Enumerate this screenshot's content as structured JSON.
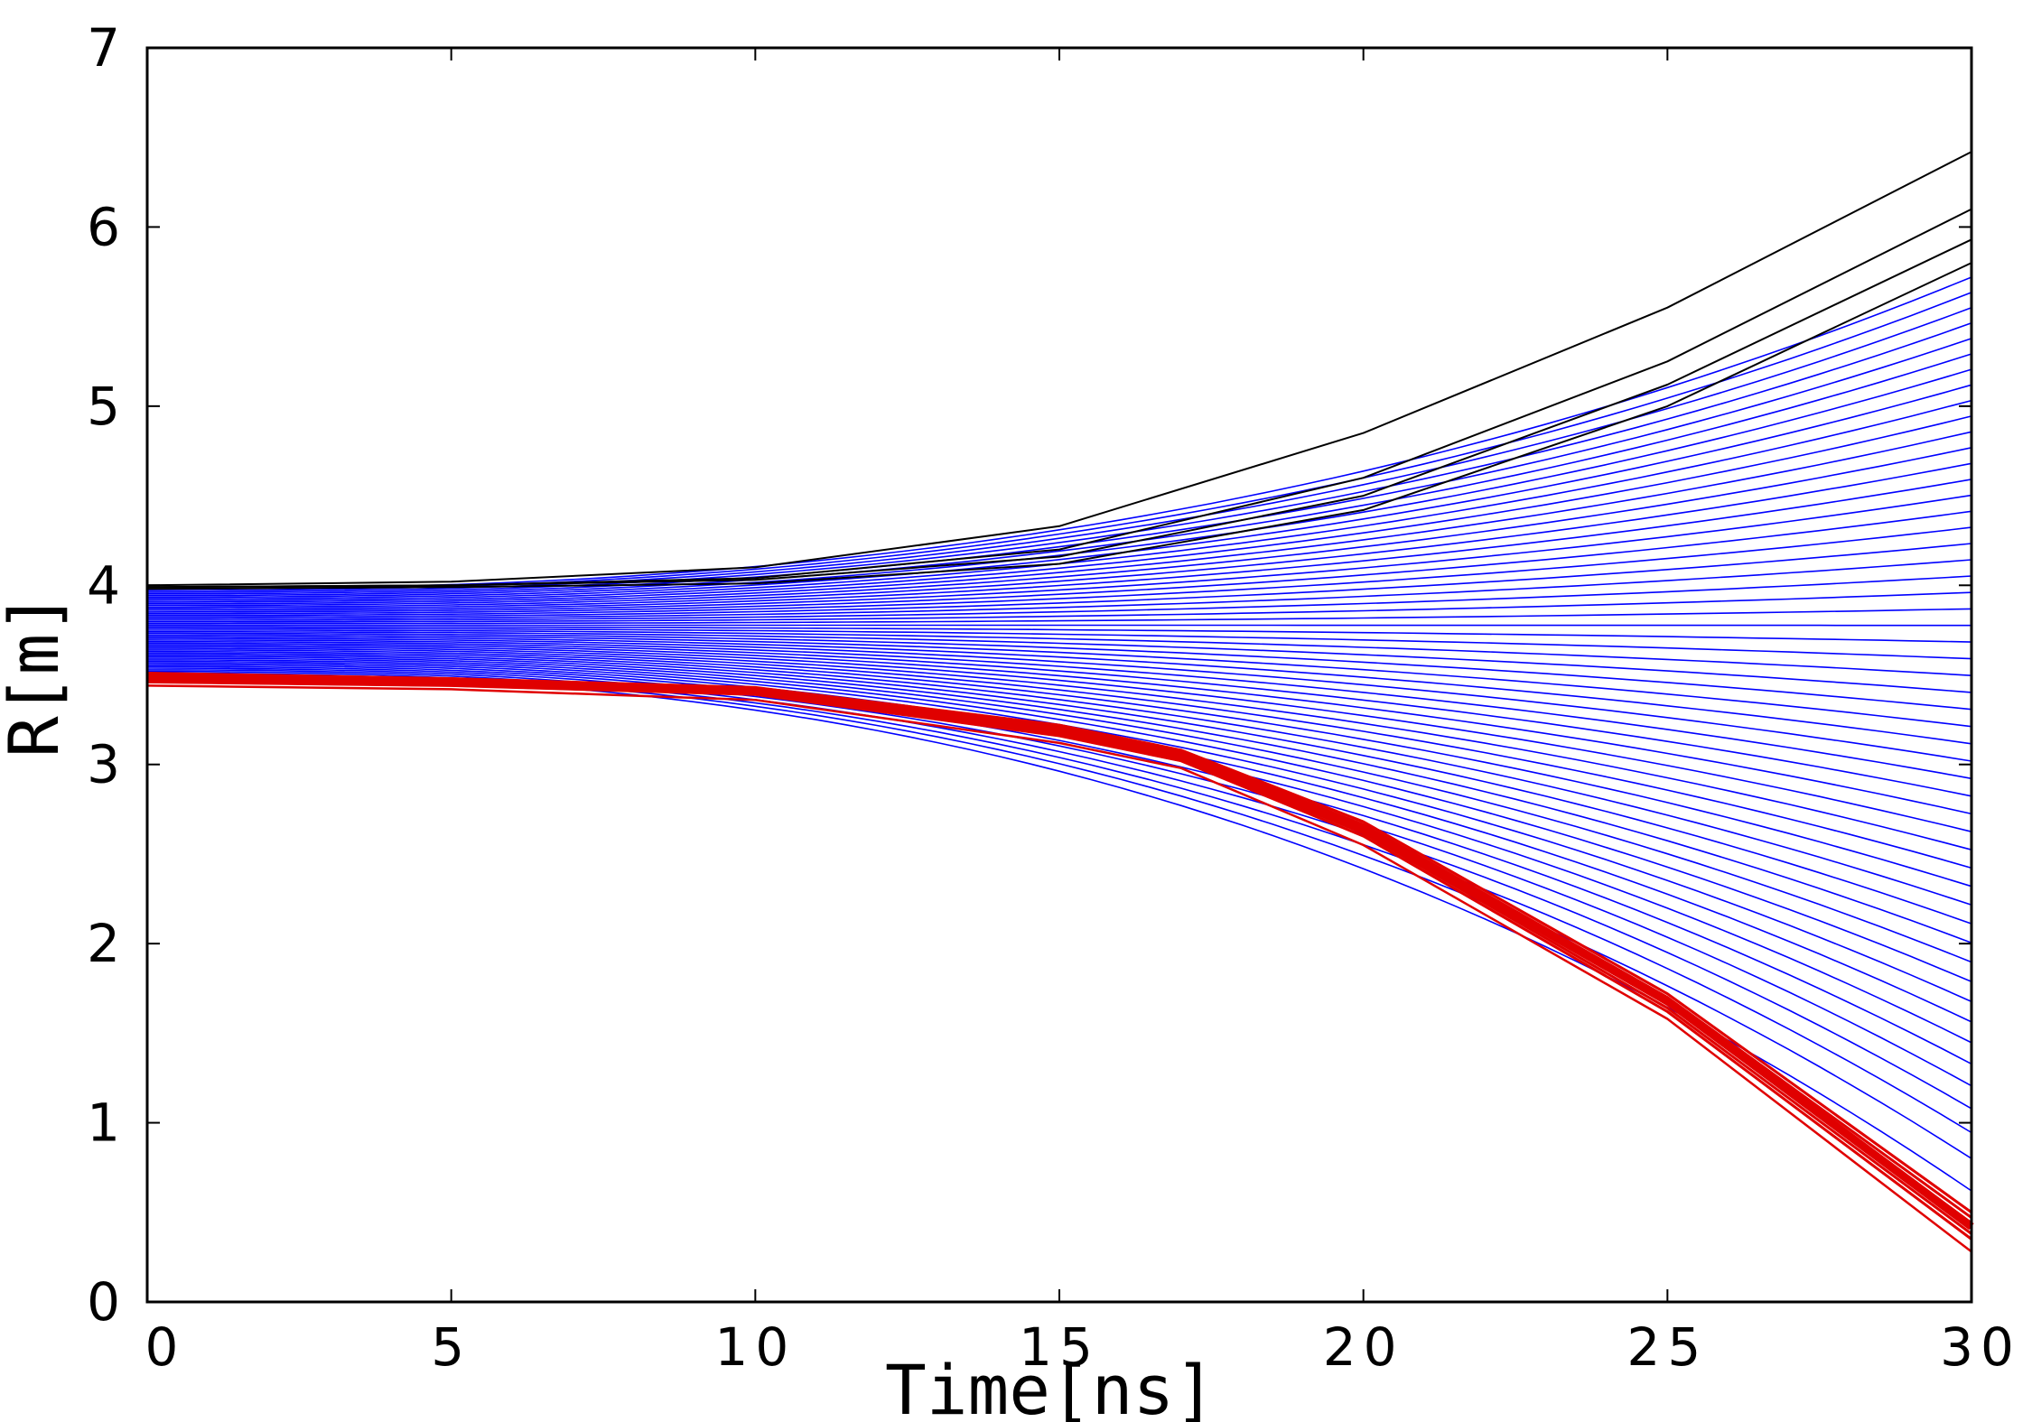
{
  "chart_data": {
    "type": "line",
    "title": "",
    "xlabel": "Time[ns]",
    "ylabel": "R[m]",
    "xlim": [
      0,
      30
    ],
    "ylim": [
      0,
      7
    ],
    "xticks": [
      0,
      5,
      10,
      15,
      20,
      25,
      30
    ],
    "yticks": [
      0,
      1,
      2,
      3,
      4,
      5,
      6,
      7
    ],
    "x_tick_labels": [
      "0",
      "5",
      "10",
      "15",
      "20",
      "25",
      "30"
    ],
    "y_tick_labels": [
      "0",
      "1",
      "2",
      "3",
      "4",
      "5",
      "6",
      "7"
    ],
    "grid": false,
    "legend": "none",
    "colors": {
      "black": "#000000",
      "blue": "#0000ff",
      "red": "#e00000"
    },
    "series_groups": [
      {
        "color": "black",
        "description_hidden": true,
        "time": [
          0,
          5,
          10,
          15,
          20,
          25,
          30
        ],
        "lines": [
          [
            4.0,
            4.02,
            4.1,
            4.33,
            4.85,
            5.55,
            6.42
          ],
          [
            3.99,
            4.0,
            4.04,
            4.2,
            4.6,
            5.25,
            6.1
          ],
          [
            3.99,
            4.0,
            4.03,
            4.16,
            4.5,
            5.12,
            5.93
          ],
          [
            3.98,
            3.99,
            4.01,
            4.12,
            4.42,
            5.0,
            5.8
          ]
        ]
      },
      {
        "color": "blue",
        "start_range": [
          3.51,
          3.98
        ],
        "end_range": [
          0.62,
          5.72
        ],
        "count": 52
      },
      {
        "color": "red",
        "time": [
          0,
          5,
          10,
          15,
          17,
          20,
          25,
          30
        ],
        "lines": [
          [
            3.51,
            3.48,
            3.43,
            3.22,
            3.08,
            2.68,
            1.72,
            0.5
          ],
          [
            3.48,
            3.46,
            3.41,
            3.2,
            3.06,
            2.64,
            1.68,
            0.42
          ],
          [
            3.46,
            3.44,
            3.39,
            3.16,
            3.02,
            2.6,
            1.62,
            0.35
          ],
          [
            3.44,
            3.42,
            3.36,
            3.12,
            2.98,
            2.55,
            1.58,
            0.28
          ]
        ]
      }
    ]
  }
}
